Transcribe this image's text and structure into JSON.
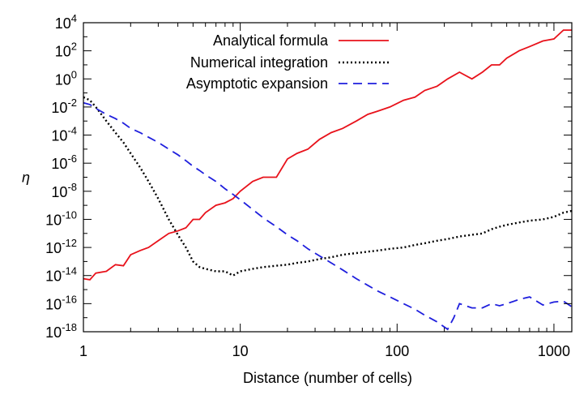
{
  "chart_data": {
    "type": "line",
    "xscale": "log",
    "yscale": "log",
    "xlim": [
      1,
      1300
    ],
    "ylim": [
      1e-18,
      10000.0
    ],
    "xlabel": "Distance (number of cells)",
    "ylabel": "η",
    "x_ticks": [
      {
        "value": 1,
        "label": "1"
      },
      {
        "value": 10,
        "label": "10"
      },
      {
        "value": 100,
        "label": "100"
      },
      {
        "value": 1000,
        "label": "1000"
      }
    ],
    "y_ticks": [
      {
        "value": 10000.0,
        "base": "10",
        "exp": "4"
      },
      {
        "value": 100.0,
        "base": "10",
        "exp": "2"
      },
      {
        "value": 1.0,
        "base": "10",
        "exp": "0"
      },
      {
        "value": 0.01,
        "base": "10",
        "exp": "-2"
      },
      {
        "value": 0.0001,
        "base": "10",
        "exp": "-4"
      },
      {
        "value": 1e-06,
        "base": "10",
        "exp": "-6"
      },
      {
        "value": 1e-08,
        "base": "10",
        "exp": "-8"
      },
      {
        "value": 1e-10,
        "base": "10",
        "exp": "-10"
      },
      {
        "value": 1e-12,
        "base": "10",
        "exp": "-12"
      },
      {
        "value": 1e-14,
        "base": "10",
        "exp": "-14"
      },
      {
        "value": 1e-16,
        "base": "10",
        "exp": "-16"
      },
      {
        "value": 1e-18,
        "base": "10",
        "exp": "-18"
      }
    ],
    "legend": {
      "position": "top-center"
    },
    "grid": false,
    "series": [
      {
        "name": "Analytical formula",
        "color": "#e8121b",
        "style": "solid",
        "x": [
          1,
          1.1,
          1.2,
          1.4,
          1.6,
          1.8,
          2.0,
          2.3,
          2.6,
          3.0,
          3.5,
          4.0,
          4.5,
          5.0,
          5.5,
          6.0,
          7.0,
          8.0,
          9.0,
          10,
          12,
          14,
          17,
          20,
          23,
          27,
          32,
          38,
          45,
          55,
          65,
          75,
          90,
          110,
          130,
          150,
          180,
          210,
          250,
          300,
          350,
          400,
          450,
          500,
          600,
          700,
          850,
          1000,
          1150,
          1300
        ],
        "y": [
          6e-15,
          5e-15,
          1.5e-14,
          2e-14,
          6e-14,
          5e-14,
          3e-13,
          6e-13,
          1e-12,
          3e-12,
          1e-11,
          1.5e-11,
          2.5e-11,
          1e-10,
          1e-10,
          3e-10,
          1e-09,
          1.5e-09,
          3e-09,
          1e-08,
          5e-08,
          1e-07,
          1e-07,
          2e-06,
          5e-06,
          1e-05,
          5e-05,
          0.00015,
          0.0003,
          0.001,
          0.003,
          0.005,
          0.01,
          0.03,
          0.05,
          0.15,
          0.3,
          1,
          3,
          1,
          3,
          10,
          10,
          30,
          100,
          200,
          500,
          700,
          3000,
          3000
        ]
      },
      {
        "name": "Numerical integration",
        "color": "#000000",
        "style": "dotted",
        "x": [
          1,
          1.1,
          1.2,
          1.4,
          1.6,
          1.8,
          2.0,
          2.3,
          2.6,
          3.0,
          3.5,
          4.0,
          4.5,
          5.0,
          5.5,
          6.0,
          7.0,
          8.0,
          9.0,
          10,
          12,
          14,
          17,
          20,
          23,
          27,
          32,
          38,
          45,
          55,
          65,
          75,
          90,
          110,
          130,
          150,
          180,
          210,
          250,
          300,
          350,
          400,
          450,
          500,
          600,
          700,
          850,
          1000,
          1150,
          1300
        ],
        "y": [
          0.05,
          0.03,
          0.01,
          0.001,
          0.00015,
          3e-05,
          5e-06,
          5e-07,
          5e-08,
          3e-09,
          1e-10,
          8e-12,
          1e-12,
          1e-13,
          4e-14,
          3e-14,
          2e-14,
          2e-14,
          1e-14,
          2e-14,
          3e-14,
          4e-14,
          5e-14,
          6e-14,
          8e-14,
          1e-13,
          1.5e-13,
          2e-13,
          3e-13,
          4e-13,
          5e-13,
          6e-13,
          8e-13,
          1e-12,
          1.5e-12,
          2e-12,
          3e-12,
          4e-12,
          6e-12,
          8e-12,
          1e-11,
          2e-11,
          3e-11,
          4e-11,
          6e-11,
          8e-11,
          1e-10,
          1.5e-10,
          3e-10,
          4e-10
        ]
      },
      {
        "name": "Asymptotic expansion",
        "color": "#1f1fdd",
        "style": "dashed",
        "x": [
          1,
          1.1,
          1.2,
          1.4,
          1.6,
          1.8,
          2.0,
          2.3,
          2.6,
          3.0,
          3.5,
          4.0,
          4.5,
          5.0,
          5.5,
          6.0,
          7.0,
          8.0,
          9.0,
          10,
          12,
          14,
          17,
          20,
          23,
          27,
          32,
          38,
          45,
          55,
          65,
          75,
          90,
          110,
          130,
          150,
          180,
          210,
          230,
          250,
          300,
          350,
          400,
          450,
          500,
          600,
          700,
          850,
          1000,
          1150,
          1300
        ],
        "y": [
          0.02,
          0.015,
          0.008,
          0.003,
          0.0015,
          0.0007,
          0.0003,
          0.00015,
          7e-05,
          3e-05,
          1e-05,
          4e-06,
          1.5e-06,
          6e-07,
          3e-07,
          1.5e-07,
          5e-08,
          1.5e-08,
          6e-09,
          2.5e-09,
          5e-10,
          1.3e-10,
          3e-11,
          8e-12,
          3e-12,
          8e-13,
          2.5e-13,
          8e-14,
          2.5e-14,
          6e-15,
          2e-15,
          8e-16,
          3e-16,
          1e-16,
          4e-17,
          1.5e-17,
          5e-18,
          1.5e-18,
          1e-17,
          1e-16,
          5e-17,
          5e-17,
          1e-16,
          7e-17,
          1e-16,
          2e-16,
          3e-16,
          8e-17,
          1.3e-16,
          1.5e-16,
          6e-17
        ]
      }
    ]
  }
}
